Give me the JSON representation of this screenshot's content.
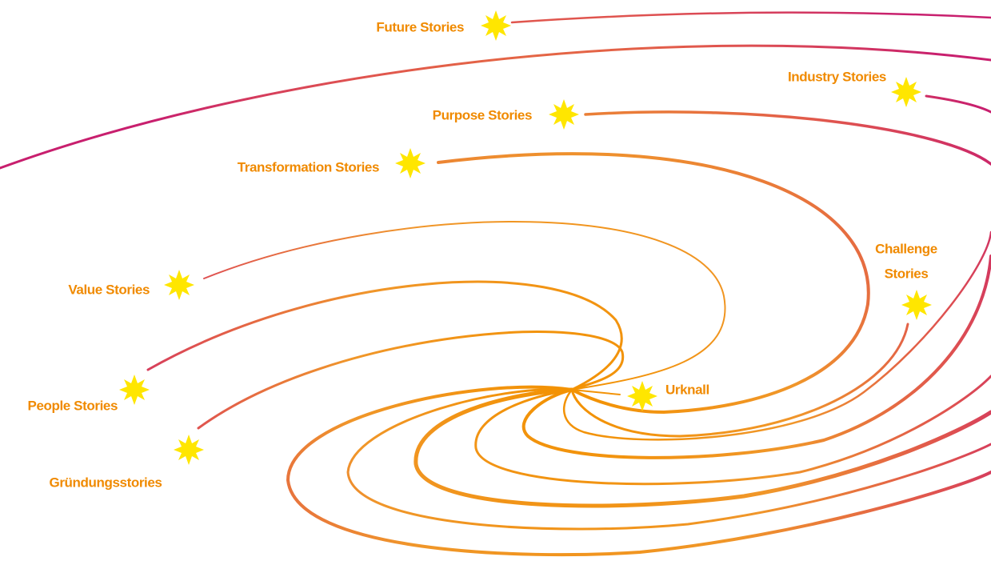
{
  "labels": [
    {
      "text": "Future Stories"
    },
    {
      "text": "Industry Stories"
    },
    {
      "text": "Purpose Stories"
    },
    {
      "text": "Transformation Stories"
    },
    {
      "text": "Value Stories"
    },
    {
      "text": "People Stories"
    },
    {
      "text": "Gründungsstories"
    },
    {
      "lines": [
        "Challenge",
        "Stories"
      ]
    },
    {
      "text": "Urknall"
    }
  ]
}
